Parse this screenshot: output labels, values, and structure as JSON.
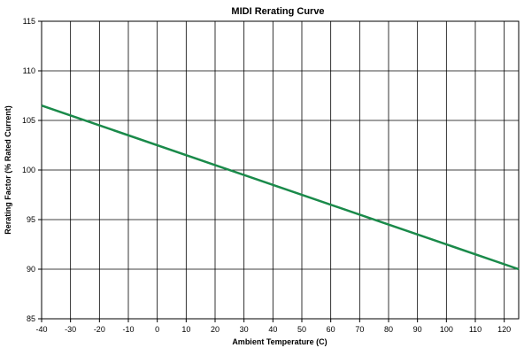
{
  "chart_data": {
    "type": "line",
    "title": "MIDI Rerating Curve",
    "xlabel": "Ambient Temperature (C)",
    "ylabel": "Rerating Factor (% Rated Current)",
    "xlim": [
      -40,
      125
    ],
    "ylim": [
      85,
      115
    ],
    "x_ticks": [
      -40,
      -30,
      -20,
      -10,
      0,
      10,
      20,
      30,
      40,
      50,
      60,
      70,
      80,
      90,
      100,
      110,
      120
    ],
    "y_ticks": [
      85,
      90,
      95,
      100,
      105,
      110,
      115
    ],
    "grid": true,
    "series": [
      {
        "color": "#1a8a4a",
        "x": [
          -40,
          125
        ],
        "y": [
          106.5,
          90
        ]
      }
    ]
  }
}
